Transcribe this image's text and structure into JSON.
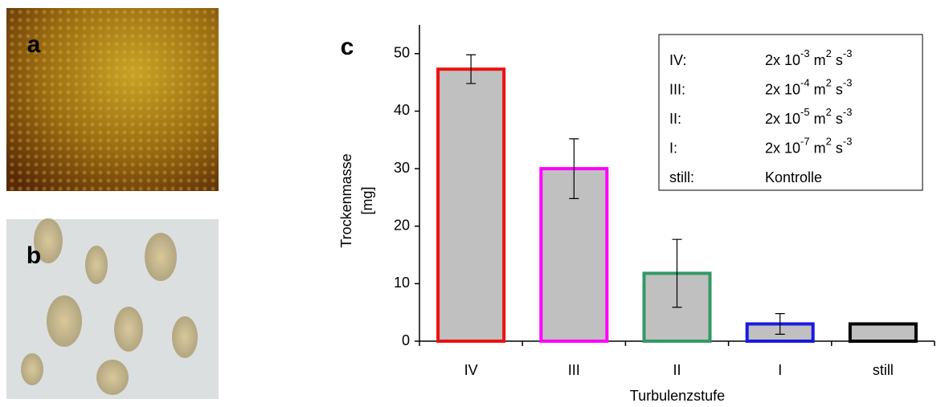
{
  "panels": {
    "a": "a",
    "b": "b"
  },
  "chart_data": {
    "type": "bar",
    "panel_label": "c",
    "x_label": "Turbulenzstufe",
    "y_label": [
      "Trockenmasse",
      "[mg]"
    ],
    "categories": [
      "IV",
      "III",
      "II",
      "I",
      "still"
    ],
    "values": [
      47.3,
      30,
      11.8,
      3,
      3
    ],
    "errors": [
      2.5,
      5.2,
      5.9,
      1.8,
      null
    ],
    "fill": "#c0c0c0",
    "edge_colors": [
      "#ee1111",
      "#ff00ff",
      "#339966",
      "#1a1adf",
      "#000000"
    ],
    "ylim": [
      0,
      55
    ],
    "yticks": [
      0,
      10,
      20,
      30,
      40,
      50
    ],
    "legend": [
      {
        "key": "IV:",
        "text": [
          "2x 10",
          "-3",
          " m",
          "2",
          " s",
          "-3"
        ]
      },
      {
        "key": "III:",
        "text": [
          "2x 10",
          "-4",
          " m",
          "2",
          " s",
          "-3"
        ]
      },
      {
        "key": "II:",
        "text": [
          "2x 10",
          "-5",
          " m",
          "2",
          " s",
          "-3"
        ]
      },
      {
        "key": "I:",
        "text": [
          "2x 10",
          "-7",
          " m",
          "2",
          " s",
          "-3"
        ]
      },
      {
        "key": "still:",
        "text": [
          "Kontrolle"
        ]
      }
    ]
  }
}
